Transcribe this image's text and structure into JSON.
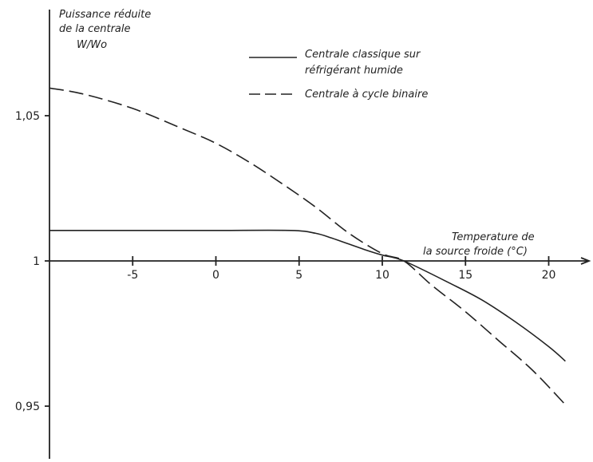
{
  "chart_data": {
    "type": "line",
    "ylabel": [
      "Puissance réduite",
      "de la centrale",
      "W/Wo"
    ],
    "xlabel": [
      "Temperature de",
      "la source froide  (°C)"
    ],
    "xlim": [
      -10,
      22
    ],
    "ylim": [
      0.93,
      1.08
    ],
    "x_ticks": [
      -5,
      0,
      5,
      10,
      15,
      20
    ],
    "x_tick_labels": [
      "-5",
      "0",
      "5",
      "10",
      "15",
      "20"
    ],
    "y_ticks": [
      0.95,
      1.0,
      1.05
    ],
    "y_tick_labels": [
      "0,95",
      "1",
      "1,05"
    ],
    "grid": false,
    "legend_position": "top-center",
    "series": [
      {
        "name": "Centrale classique sur réfrigérant humide",
        "style": "solid",
        "x": [
          -10,
          -5,
          0,
          4.5,
          6,
          7,
          8,
          9,
          10,
          11.3,
          14,
          16,
          18,
          20,
          21
        ],
        "y": [
          1.0105,
          1.0105,
          1.0105,
          1.0105,
          1.0095,
          1.0078,
          1.0058,
          1.0038,
          1.002,
          1.0,
          0.9925,
          0.9865,
          0.979,
          0.9705,
          0.9655
        ]
      },
      {
        "name": "Centrale à cycle binaire",
        "style": "dashed",
        "x": [
          -10,
          -8,
          -5,
          -2,
          0,
          2,
          4,
          6,
          8,
          10,
          11.3,
          13,
          15,
          17,
          19,
          21
        ],
        "y": [
          1.0595,
          1.0575,
          1.0525,
          1.0455,
          1.0405,
          1.034,
          1.0265,
          1.0185,
          1.0095,
          1.0025,
          1.0,
          0.9915,
          0.9825,
          0.9725,
          0.9625,
          0.9505
        ]
      }
    ]
  }
}
